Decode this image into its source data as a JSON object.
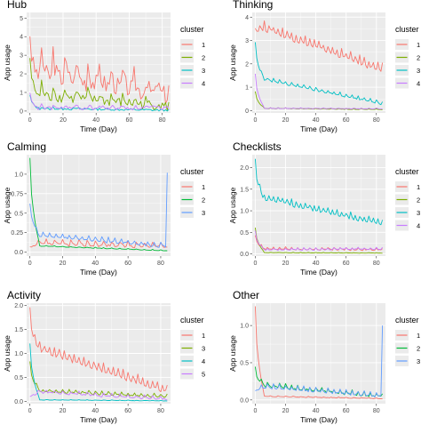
{
  "colors": {
    "panel_bg": "#EBEBEB",
    "grid": "#FFFFFF",
    "red": "#F8766D",
    "olive": "#7CAE00",
    "teal": "#00BFC4",
    "purple": "#C77CFF",
    "green": "#00BA38",
    "blue": "#619CFF"
  },
  "chart_data": [
    {
      "type": "line",
      "title": "Hub",
      "xlabel": "Time (Day)",
      "ylabel": "App usage",
      "xlim": [
        -2,
        85
      ],
      "ylim": [
        -0.1,
        5.3
      ],
      "x_ticks": [
        0,
        20,
        40,
        60,
        80
      ],
      "y_ticks": [
        0,
        1,
        2,
        3,
        4,
        5
      ],
      "grid": true,
      "legend": {
        "title": "cluster",
        "position": "right"
      },
      "series": [
        {
          "name": "1",
          "color": "red",
          "base": [
            3.0,
            2.4,
            1.0
          ],
          "amp": 1.7,
          "period": 7,
          "decay": 0.012
        },
        {
          "name": "2",
          "color": "olive",
          "base": [
            2.2,
            1.0,
            0.28
          ],
          "amp": 0.9,
          "period": 7,
          "decay": 0.02
        },
        {
          "name": "3",
          "color": "teal",
          "base": [
            0.7,
            0.15,
            0.04
          ],
          "amp": 0.2,
          "period": 7,
          "decay": 0.05
        },
        {
          "name": "4",
          "color": "purple",
          "base": [
            0.6,
            0.2,
            0.18
          ],
          "amp": 0.4,
          "period": 7,
          "decay": 0.03
        }
      ]
    },
    {
      "type": "line",
      "title": "Thinking",
      "xlabel": "Time (Day)",
      "ylabel": "App usage",
      "xlim": [
        -2,
        86
      ],
      "ylim": [
        -0.1,
        4.2
      ],
      "x_ticks": [
        0,
        20,
        40,
        60,
        80
      ],
      "y_ticks": [
        0,
        1,
        2,
        3,
        4
      ],
      "grid": true,
      "legend": {
        "title": "cluster",
        "position": "right"
      },
      "series": [
        {
          "name": "1",
          "color": "red",
          "base": [
            3.4,
            3.55,
            1.75
          ],
          "amp": 0.3,
          "period": 3,
          "decay": 0
        },
        {
          "name": "2",
          "color": "olive",
          "base": [
            0.8,
            0.1,
            0.05
          ],
          "amp": 0.03,
          "period": 5,
          "decay": 0
        },
        {
          "name": "3",
          "color": "teal",
          "base": [
            2.85,
            1.35,
            0.3
          ],
          "amp": 0.12,
          "period": 4,
          "decay": 0
        },
        {
          "name": "4",
          "color": "purple",
          "base": [
            1.55,
            0.1,
            0.08
          ],
          "amp": 0.03,
          "period": 5,
          "decay": 0
        }
      ]
    },
    {
      "type": "line",
      "title": "Calming",
      "xlabel": "Time (Day)",
      "ylabel": "App usage",
      "xlim": [
        -2,
        86
      ],
      "ylim": [
        -0.05,
        1.25
      ],
      "x_ticks": [
        0,
        20,
        40,
        60,
        80
      ],
      "y_ticks": [
        0.0,
        0.25,
        0.5,
        0.75,
        1.0
      ],
      "grid": true,
      "legend": {
        "title": "cluster",
        "position": "right"
      },
      "series": [
        {
          "name": "1",
          "color": "red",
          "base": [
            0.02,
            0.12,
            0.08
          ],
          "amp": 0.06,
          "period": 5,
          "decay": 0
        },
        {
          "name": "2",
          "color": "green",
          "base": [
            1.2,
            0.08,
            0.02
          ],
          "amp": 0.01,
          "period": 5,
          "decay": 0
        },
        {
          "name": "3",
          "color": "blue",
          "base": [
            0.6,
            0.22,
            0.08
          ],
          "amp": 0.05,
          "period": 4,
          "decay": 0,
          "spike_end": 1.02
        }
      ]
    },
    {
      "type": "line",
      "title": "Checklists",
      "xlabel": "Time (Day)",
      "ylabel": "App usage",
      "xlim": [
        -2,
        86
      ],
      "ylim": [
        -0.05,
        2.3
      ],
      "x_ticks": [
        0,
        20,
        40,
        60,
        80
      ],
      "y_ticks": [
        0.0,
        0.5,
        1.0,
        1.5,
        2.0
      ],
      "grid": true,
      "legend": {
        "title": "cluster",
        "position": "right"
      },
      "series": [
        {
          "name": "1",
          "color": "red",
          "base": [
            0.4,
            0.12,
            0.1
          ],
          "amp": 0.05,
          "period": 4,
          "decay": 0
        },
        {
          "name": "2",
          "color": "olive",
          "base": [
            0.6,
            0.03,
            0.02
          ],
          "amp": 0.01,
          "period": 5,
          "decay": 0
        },
        {
          "name": "3",
          "color": "teal",
          "base": [
            2.1,
            1.3,
            0.7
          ],
          "amp": 0.12,
          "period": 3,
          "decay": 0
        },
        {
          "name": "4",
          "color": "purple",
          "base": [
            0.5,
            0.1,
            0.12
          ],
          "amp": 0.04,
          "period": 4,
          "decay": 0
        }
      ]
    },
    {
      "type": "line",
      "title": "Activity",
      "xlabel": "Time (Day)",
      "ylabel": "App usage",
      "xlim": [
        -2,
        86
      ],
      "ylim": [
        -0.05,
        2.05
      ],
      "x_ticks": [
        0,
        20,
        40,
        60,
        80
      ],
      "y_ticks": [
        0.0,
        0.5,
        1.0,
        1.5,
        2.0
      ],
      "grid": true,
      "legend": {
        "title": "cluster",
        "position": "right"
      },
      "series": [
        {
          "name": "1",
          "color": "red",
          "base": [
            1.9,
            1.1,
            0.22
          ],
          "amp": 0.15,
          "period": 3,
          "decay": 0
        },
        {
          "name": "3",
          "color": "olive",
          "base": [
            0.8,
            0.22,
            0.1
          ],
          "amp": 0.06,
          "period": 4,
          "decay": 0
        },
        {
          "name": "4",
          "color": "teal",
          "base": [
            1.2,
            0.03,
            0.01
          ],
          "amp": 0.01,
          "period": 5,
          "decay": 0
        },
        {
          "name": "5",
          "color": "purple",
          "base": [
            0.05,
            0.2,
            0.05
          ],
          "amp": 0.06,
          "period": 5,
          "decay": 0
        }
      ]
    },
    {
      "type": "line",
      "title": "Other",
      "xlabel": "Time (Day)",
      "ylabel": "App usage",
      "xlim": [
        -2,
        86
      ],
      "ylim": [
        -0.05,
        1.3
      ],
      "x_ticks": [
        0,
        20,
        40,
        60,
        80
      ],
      "y_ticks": [
        0.0,
        0.5,
        1.0
      ],
      "grid": true,
      "legend": {
        "title": "cluster",
        "position": "right"
      },
      "series": [
        {
          "name": "1",
          "color": "red",
          "base": [
            1.25,
            0.05,
            0.02
          ],
          "amp": 0.01,
          "period": 5,
          "decay": 0
        },
        {
          "name": "2",
          "color": "green",
          "base": [
            0.4,
            0.2,
            0.05
          ],
          "amp": 0.05,
          "period": 4,
          "decay": 0
        },
        {
          "name": "3",
          "color": "blue",
          "base": [
            0.1,
            0.18,
            0.06
          ],
          "amp": 0.05,
          "period": 4,
          "decay": 0,
          "spike_end": 1.0
        }
      ]
    }
  ]
}
